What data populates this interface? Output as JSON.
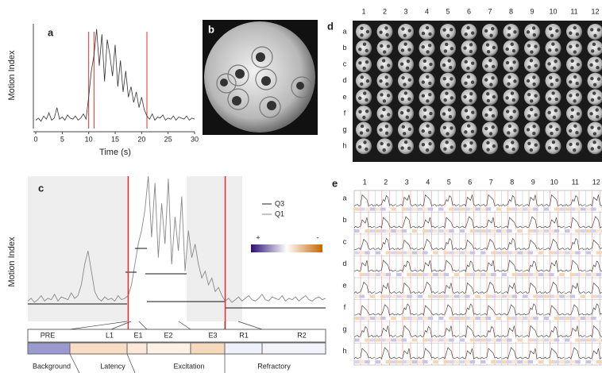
{
  "chart_data": [
    {
      "type": "line",
      "label": "a",
      "ylabel": "Motion Index",
      "xlabel": "Time (s)",
      "color": "#333333",
      "xlim": [
        0,
        30
      ],
      "xticks": [
        0,
        5,
        10,
        15,
        20,
        25,
        30
      ],
      "ylim": [
        0,
        1
      ],
      "markers": {
        "color": "#e03030",
        "x": [
          10,
          11,
          21
        ]
      },
      "x": [
        0,
        0.5,
        1,
        1.5,
        2,
        2.5,
        3,
        3.5,
        4,
        4.5,
        5,
        5.5,
        6,
        6.5,
        7,
        7.5,
        8,
        8.5,
        9,
        9.5,
        10,
        10.5,
        11,
        11.5,
        12,
        12.5,
        13,
        13.5,
        14,
        14.5,
        15,
        15.5,
        16,
        16.5,
        17,
        17.5,
        18,
        18.5,
        19,
        19.5,
        20,
        20.5,
        21,
        21.5,
        22,
        22.5,
        23,
        23.5,
        24,
        24.5,
        25,
        25.5,
        26,
        26.5,
        27,
        27.5,
        28,
        28.5,
        29,
        29.5,
        30
      ],
      "values": [
        0.08,
        0.1,
        0.07,
        0.12,
        0.09,
        0.15,
        0.08,
        0.1,
        0.2,
        0.09,
        0.11,
        0.08,
        0.13,
        0.1,
        0.09,
        0.12,
        0.08,
        0.1,
        0.14,
        0.09,
        0.3,
        0.55,
        0.7,
        0.95,
        0.6,
        0.9,
        0.45,
        0.85,
        0.7,
        0.5,
        0.8,
        0.4,
        0.65,
        0.35,
        0.55,
        0.3,
        0.4,
        0.25,
        0.35,
        0.2,
        0.3,
        0.18,
        0.12,
        0.09,
        0.14,
        0.08,
        0.11,
        0.1,
        0.13,
        0.08,
        0.1,
        0.09,
        0.12,
        0.08,
        0.11,
        0.1,
        0.09,
        0.12,
        0.08,
        0.1,
        0.09
      ]
    },
    {
      "type": "line",
      "label": "c",
      "ylabel": "Motion Index",
      "color": "#888888",
      "xlim": [
        0,
        89
      ],
      "ylim": [
        0,
        1
      ],
      "markers": {
        "color": "#e03030",
        "x": [
          30,
          59
        ]
      },
      "legend": [
        "Q3",
        "Q1"
      ],
      "scale_labels": [
        "+",
        "-"
      ],
      "phases": [
        "PRE",
        "L1",
        "E1",
        "E2",
        "E3",
        "R1",
        "R2"
      ],
      "stages": [
        "Background",
        "Latency",
        "Excitation",
        "Refractory"
      ],
      "values": [
        0.08,
        0.1,
        0.07,
        0.09,
        0.12,
        0.08,
        0.1,
        0.09,
        0.13,
        0.08,
        0.11,
        0.1,
        0.09,
        0.14,
        0.1,
        0.12,
        0.2,
        0.35,
        0.45,
        0.3,
        0.15,
        0.1,
        0.08,
        0.11,
        0.09,
        0.1,
        0.08,
        0.12,
        0.09,
        0.1,
        0.12,
        0.2,
        0.35,
        0.5,
        0.6,
        0.75,
        1,
        0.55,
        0.95,
        0.4,
        0.8,
        0.5,
        0.98,
        0.35,
        0.7,
        0.45,
        0.85,
        0.3,
        0.6,
        0.4,
        0.5,
        0.35,
        0.25,
        0.3,
        0.2,
        0.25,
        0.15,
        0.18,
        0.12,
        0.08,
        0.1,
        0.07,
        0.09,
        0.11,
        0.08,
        0.1,
        0.12,
        0.09,
        0.08,
        0.1,
        0.13,
        0.09,
        0.08,
        0.11,
        0.1,
        0.09,
        0.12,
        0.08,
        0.1,
        0.09,
        0.11,
        0.08,
        0.1,
        0.12,
        0.09,
        0.08,
        0.1,
        0.11,
        0.09,
        0.1
      ]
    }
  ],
  "panel_b": {
    "label": "b"
  },
  "panel_d": {
    "label": "d",
    "columns": [
      "1",
      "2",
      "3",
      "4",
      "5",
      "6",
      "7",
      "8",
      "9",
      "10",
      "11",
      "12"
    ],
    "rows": [
      "a",
      "b",
      "c",
      "d",
      "e",
      "f",
      "g",
      "h"
    ]
  },
  "panel_e": {
    "label": "e",
    "columns": [
      "1",
      "2",
      "3",
      "4",
      "5",
      "6",
      "7",
      "8",
      "9",
      "10",
      "11",
      "12"
    ],
    "rows": [
      "a",
      "b",
      "c",
      "d",
      "e",
      "f",
      "g",
      "h"
    ]
  }
}
